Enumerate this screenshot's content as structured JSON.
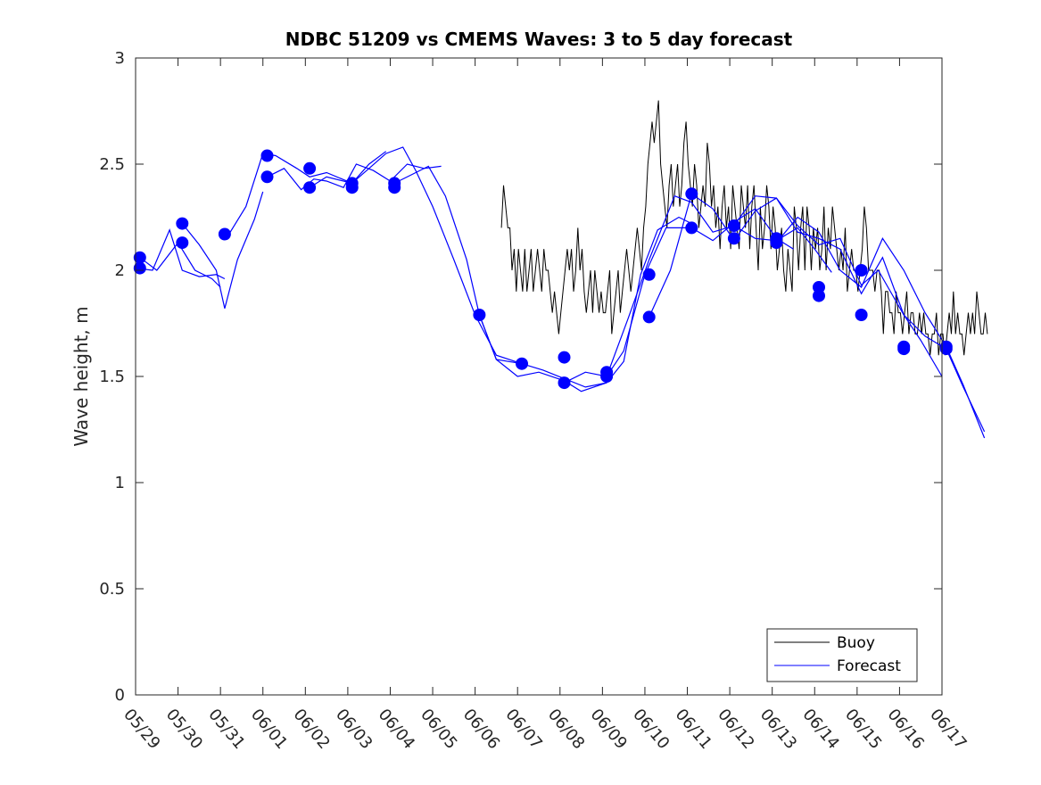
{
  "chart_data": {
    "type": "line",
    "title": "NDBC 51209 vs CMEMS Waves: 3 to 5 day forecast",
    "xlabel": "",
    "ylabel": "Wave height, m",
    "xlim": [
      "05/29",
      "06/17"
    ],
    "ylim": [
      0,
      3
    ],
    "x_ticks": [
      "05/29",
      "05/30",
      "05/31",
      "06/01",
      "06/02",
      "06/03",
      "06/04",
      "06/05",
      "06/06",
      "06/07",
      "06/08",
      "06/09",
      "06/10",
      "06/11",
      "06/12",
      "06/13",
      "06/14",
      "06/15",
      "06/16",
      "06/17"
    ],
    "y_ticks": [
      "0",
      "0.5",
      "1",
      "1.5",
      "2",
      "2.5",
      "3"
    ],
    "grid": false,
    "legend": {
      "placement": "bottom-right",
      "entries": [
        "Buoy",
        "Forecast"
      ]
    },
    "colors": {
      "buoy": "#000000",
      "forecast": "#0000ff"
    },
    "series": [
      {
        "name": "Buoy",
        "x_days_from_0529": [
          8.62,
          8.67,
          8.72,
          8.77,
          8.82,
          8.87,
          8.92,
          8.97,
          9.02,
          9.07,
          9.12,
          9.17,
          9.22,
          9.27,
          9.32,
          9.37,
          9.42,
          9.47,
          9.52,
          9.57,
          9.62,
          9.67,
          9.72,
          9.77,
          9.82,
          9.87,
          9.92,
          9.97,
          10.02,
          10.07,
          10.12,
          10.17,
          10.22,
          10.27,
          10.32,
          10.37,
          10.42,
          10.47,
          10.52,
          10.57,
          10.62,
          10.67,
          10.72,
          10.77,
          10.82,
          10.87,
          10.92,
          10.97,
          11.02,
          11.07,
          11.12,
          11.17,
          11.22,
          11.27,
          11.32,
          11.37,
          11.42,
          11.47,
          11.52,
          11.57,
          11.62,
          11.67,
          11.72,
          11.77,
          11.82,
          11.87,
          11.92,
          11.97,
          12.02,
          12.07,
          12.12,
          12.17,
          12.22,
          12.27,
          12.32,
          12.37,
          12.42,
          12.47,
          12.52,
          12.57,
          12.62,
          12.67,
          12.72,
          12.77,
          12.82,
          12.87,
          12.92,
          12.97,
          13.02,
          13.07,
          13.12,
          13.17,
          13.22,
          13.27,
          13.32,
          13.37,
          13.42,
          13.47,
          13.52,
          13.57,
          13.62,
          13.67,
          13.72,
          13.77,
          13.82,
          13.87,
          13.92,
          13.97,
          14.02,
          14.07,
          14.12,
          14.17,
          14.22,
          14.27,
          14.32,
          14.37,
          14.42,
          14.47,
          14.52,
          14.57,
          14.62,
          14.67,
          14.72,
          14.77,
          14.82,
          14.87,
          14.92,
          14.97,
          15.02,
          15.07,
          15.12,
          15.17,
          15.22,
          15.27,
          15.32,
          15.37,
          15.42,
          15.47,
          15.52,
          15.57,
          15.62,
          15.67,
          15.72,
          15.77,
          15.82,
          15.87,
          15.92,
          15.97,
          16.02,
          16.07,
          16.12,
          16.17,
          16.22,
          16.27,
          16.32,
          16.37,
          16.42,
          16.47,
          16.52,
          16.57,
          16.62,
          16.67,
          16.72,
          16.77,
          16.82,
          16.87,
          16.92,
          16.97,
          17.02,
          17.07,
          17.12,
          17.17,
          17.22,
          17.27,
          17.32,
          17.37,
          17.42,
          17.47,
          17.52,
          17.57,
          17.62,
          17.67,
          17.72,
          17.77,
          17.82,
          17.87,
          17.92,
          17.97,
          18.02,
          18.07,
          18.12,
          18.17,
          18.22,
          18.27,
          18.32,
          18.37,
          18.42,
          18.47,
          18.52,
          18.57,
          18.62,
          18.67,
          18.72,
          18.77,
          18.82,
          18.87,
          18.92,
          18.97,
          19.02,
          19.07,
          19.12,
          19.17,
          19.22,
          19.27,
          19.32,
          19.37,
          19.42,
          19.47,
          19.52,
          19.57,
          19.62,
          19.67,
          19.72,
          19.77,
          19.82,
          19.87,
          19.92,
          19.97,
          20.02,
          20.07,
          20.12,
          20.17
        ],
        "y": [
          2.2,
          2.4,
          2.3,
          2.2,
          2.2,
          2.0,
          2.1,
          1.9,
          2.1,
          2.0,
          1.9,
          2.1,
          1.9,
          2.0,
          2.1,
          1.9,
          2.0,
          2.1,
          2.0,
          1.9,
          2.1,
          2.0,
          2.0,
          1.9,
          1.8,
          1.9,
          1.8,
          1.7,
          1.8,
          1.9,
          2.0,
          2.1,
          2.0,
          2.1,
          1.9,
          2.0,
          2.2,
          2.0,
          2.1,
          1.9,
          1.8,
          1.9,
          2.0,
          1.8,
          2.0,
          1.9,
          1.8,
          1.9,
          1.8,
          1.8,
          1.9,
          2.0,
          1.7,
          1.8,
          1.9,
          2.0,
          1.8,
          1.9,
          2.0,
          2.1,
          2.0,
          1.9,
          2.0,
          2.1,
          2.2,
          2.1,
          2.0,
          2.2,
          2.3,
          2.5,
          2.6,
          2.7,
          2.6,
          2.7,
          2.8,
          2.5,
          2.4,
          2.3,
          2.2,
          2.4,
          2.5,
          2.3,
          2.4,
          2.5,
          2.3,
          2.4,
          2.6,
          2.7,
          2.5,
          2.4,
          2.3,
          2.5,
          2.4,
          2.2,
          2.3,
          2.4,
          2.3,
          2.6,
          2.5,
          2.3,
          2.4,
          2.2,
          2.3,
          2.1,
          2.3,
          2.4,
          2.2,
          2.3,
          2.1,
          2.4,
          2.3,
          2.2,
          2.1,
          2.4,
          2.3,
          2.2,
          2.4,
          2.1,
          2.3,
          2.4,
          2.2,
          2.0,
          2.3,
          2.1,
          2.2,
          2.4,
          2.3,
          2.1,
          2.3,
          2.2,
          2.0,
          2.1,
          2.2,
          2.0,
          1.9,
          2.1,
          2.0,
          1.9,
          2.3,
          2.2,
          2.0,
          2.2,
          2.3,
          2.0,
          2.3,
          2.2,
          2.0,
          2.2,
          2.1,
          2.2,
          2.0,
          2.1,
          2.3,
          2.0,
          2.2,
          2.1,
          2.3,
          2.2,
          2.1,
          2.0,
          2.1,
          2.0,
          2.2,
          1.9,
          2.0,
          2.1,
          2.0,
          2.0,
          1.9,
          2.0,
          2.1,
          2.3,
          2.2,
          2.0,
          2.0,
          2.0,
          1.9,
          2.0,
          2.0,
          1.9,
          1.7,
          1.9,
          1.9,
          1.8,
          1.8,
          1.7,
          1.9,
          1.8,
          1.8,
          1.7,
          1.8,
          1.9,
          1.7,
          1.8,
          1.8,
          1.7,
          1.7,
          1.8,
          1.7,
          1.8,
          1.7,
          1.7,
          1.6,
          1.7,
          1.7,
          1.8,
          1.6,
          1.7,
          1.7,
          1.6,
          1.7,
          1.8,
          1.7,
          1.9,
          1.7,
          1.8,
          1.7,
          1.7,
          1.6,
          1.7,
          1.8,
          1.7,
          1.8,
          1.7,
          1.9,
          1.8,
          1.7,
          1.7,
          1.8,
          1.7
        ]
      },
      {
        "name": "Forecast",
        "runs": [
          {
            "x_days_from_0529": [
              0.0,
              0.4,
              0.8,
              1.1,
              1.5,
              1.9,
              2.1
            ],
            "y": [
              2.01,
              2.0,
              2.19,
              2.0,
              1.97,
              1.98,
              1.96
            ]
          },
          {
            "x_days_from_0529": [
              0.1,
              0.5,
              1.0,
              1.4,
              1.8,
              2.0
            ],
            "y": [
              2.06,
              2.0,
              2.13,
              2.0,
              1.96,
              1.92
            ]
          },
          {
            "x_days_from_0529": [
              1.1,
              1.5,
              1.9,
              2.1,
              2.4,
              2.8,
              3.0
            ],
            "y": [
              2.22,
              2.12,
              2.0,
              1.82,
              2.05,
              2.24,
              2.37
            ]
          },
          {
            "x_days_from_0529": [
              2.2,
              2.6,
              3.0,
              3.3,
              3.8,
              4.1,
              4.5,
              5.1,
              5.5,
              5.9
            ],
            "y": [
              2.17,
              2.3,
              2.55,
              2.54,
              2.48,
              2.44,
              2.46,
              2.41,
              2.5,
              2.56
            ]
          },
          {
            "x_days_from_0529": [
              3.1,
              3.5,
              3.9,
              4.2,
              4.5,
              4.9,
              5.2,
              5.6,
              6.0,
              6.4,
              6.8,
              7.2
            ],
            "y": [
              2.44,
              2.48,
              2.38,
              2.43,
              2.42,
              2.39,
              2.5,
              2.47,
              2.42,
              2.5,
              2.48,
              2.49
            ]
          },
          {
            "x_days_from_0529": [
              4.1,
              4.5,
              5.1,
              5.5,
              5.9,
              6.3,
              6.6,
              7.0,
              7.5,
              8.0,
              8.5,
              9.1
            ],
            "y": [
              2.39,
              2.44,
              2.41,
              2.48,
              2.55,
              2.58,
              2.47,
              2.3,
              2.05,
              1.79,
              1.6,
              1.56
            ]
          },
          {
            "x_days_from_0529": [
              6.1,
              6.5,
              6.9,
              7.3,
              7.8,
              8.1,
              8.5,
              9.0,
              9.5,
              10.1,
              10.5,
              11.1
            ],
            "y": [
              2.41,
              2.45,
              2.49,
              2.35,
              2.05,
              1.79,
              1.58,
              1.5,
              1.52,
              1.48,
              1.43,
              1.47
            ]
          },
          {
            "x_days_from_0529": [
              8.1,
              8.5,
              9.1,
              9.6,
              10.1,
              10.6,
              11.1,
              11.5,
              11.9,
              12.3,
              12.8,
              13.1
            ],
            "y": [
              1.79,
              1.58,
              1.56,
              1.53,
              1.49,
              1.45,
              1.47,
              1.57,
              1.98,
              2.19,
              2.25,
              2.22
            ]
          },
          {
            "x_days_from_0529": [
              10.1,
              10.6,
              11.1,
              11.5,
              12.0,
              12.5,
              13.1,
              13.6,
              14.2,
              14.6,
              15.1,
              15.5
            ],
            "y": [
              1.47,
              1.52,
              1.5,
              1.62,
              1.98,
              2.2,
              2.2,
              2.14,
              2.24,
              2.29,
              2.15,
              2.1
            ]
          },
          {
            "x_days_from_0529": [
              11.1,
              11.6,
              12.1,
              12.7,
              13.1,
              13.6,
              14.1,
              14.6,
              15.1,
              15.6,
              16.0,
              16.4
            ],
            "y": [
              1.5,
              1.77,
              2.05,
              2.35,
              2.32,
              2.18,
              2.21,
              2.15,
              2.14,
              2.2,
              2.1,
              1.99
            ]
          },
          {
            "x_days_from_0529": [
              12.1,
              12.6,
              13.1,
              13.6,
              14.1,
              14.6,
              15.1,
              15.6,
              16.1,
              16.6,
              17.1,
              17.5,
              18.1,
              18.5,
              19.0
            ],
            "y": [
              1.78,
              2.0,
              2.36,
              2.29,
              2.14,
              2.28,
              2.34,
              2.21,
              2.12,
              2.15,
              1.93,
              2.0,
              1.79,
              1.67,
              1.5
            ]
          },
          {
            "x_days_from_0529": [
              14.1,
              14.6,
              15.1,
              15.6,
              16.1,
              16.6,
              17.1,
              17.6,
              18.1,
              18.6,
              19.1,
              19.5,
              20.0
            ],
            "y": [
              2.21,
              2.35,
              2.34,
              2.18,
              2.15,
              2.1,
              1.89,
              2.06,
              1.79,
              1.69,
              1.63,
              1.45,
              1.24
            ]
          },
          {
            "x_days_from_0529": [
              15.1,
              15.6,
              16.1,
              16.6,
              17.1,
              17.6,
              18.1,
              18.6,
              19.1,
              19.5,
              20.0
            ],
            "y": [
              2.13,
              2.25,
              2.18,
              2.0,
              1.92,
              2.15,
              2.0,
              1.8,
              1.64,
              1.46,
              1.21
            ]
          }
        ],
        "markers": {
          "x_days_from_0529": [
            0.1,
            0.1,
            1.1,
            1.1,
            2.1,
            3.1,
            3.1,
            4.1,
            4.1,
            5.1,
            5.1,
            6.1,
            6.1,
            8.1,
            9.1,
            10.1,
            10.1,
            11.1,
            11.1,
            12.1,
            12.1,
            13.1,
            13.1,
            14.1,
            14.1,
            15.1,
            15.1,
            16.1,
            16.1,
            17.1,
            17.1,
            18.1,
            18.1,
            19.1,
            19.1
          ],
          "y": [
            2.01,
            2.06,
            2.22,
            2.13,
            2.17,
            2.54,
            2.44,
            2.48,
            2.39,
            2.41,
            2.39,
            2.41,
            2.39,
            1.79,
            1.56,
            1.59,
            1.47,
            1.52,
            1.5,
            1.98,
            1.78,
            2.36,
            2.2,
            2.21,
            2.15,
            2.15,
            2.13,
            1.92,
            1.88,
            2.0,
            1.79,
            1.64,
            1.63,
            1.64,
            1.63
          ]
        }
      }
    ]
  }
}
